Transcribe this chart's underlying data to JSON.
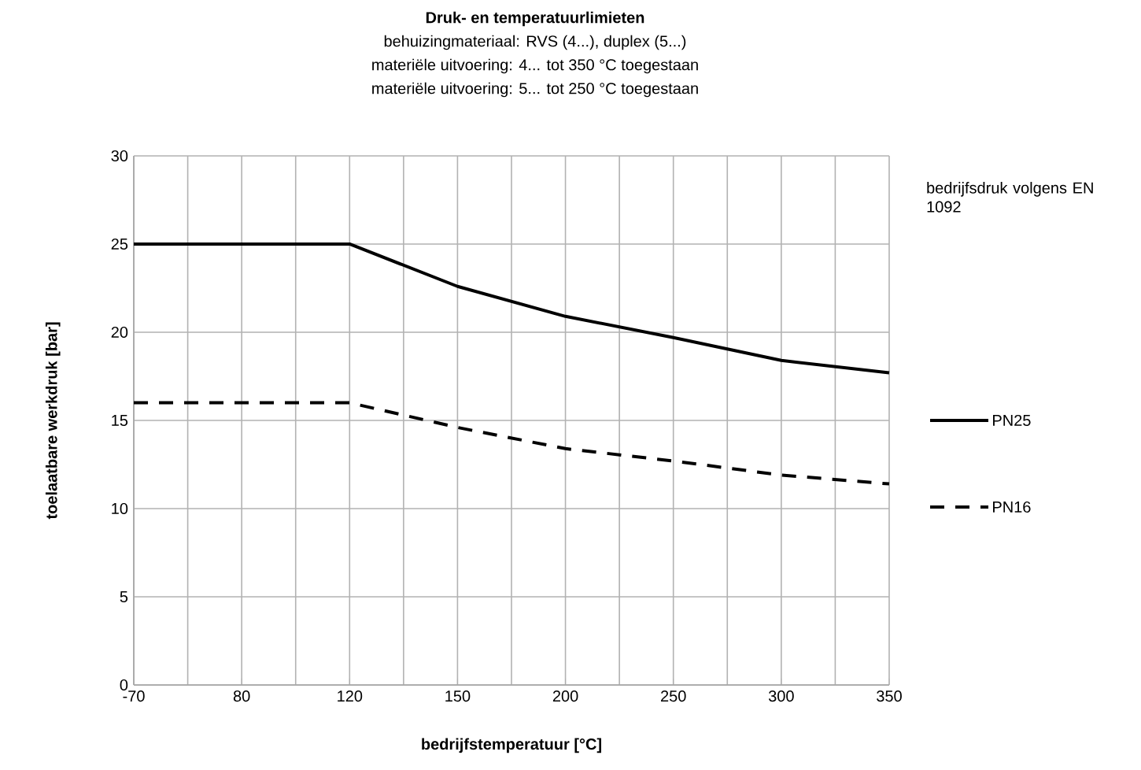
{
  "chart_data": {
    "type": "line",
    "title": "Druk- en temperatuurlimieten",
    "annotations": [
      "behuizingmateriaal: RVS (4...), duplex (5...)",
      "materiële uitvoering: 4... tot 350 °C toegestaan",
      "materiële uitvoering: 5... tot 250 °C toegestaan"
    ],
    "xlabel": "bedrijfstemperatuur [°C]",
    "ylabel": "toelaatbare werkdruk [bar]",
    "legend_title": "bedrijfsdruk volgens EN 1092",
    "categories": [
      "-70",
      "80",
      "120",
      "150",
      "200",
      "250",
      "300",
      "350"
    ],
    "series": [
      {
        "name": "PN25",
        "color": "#000000",
        "line_style": "solid",
        "values": [
          25,
          25,
          25,
          22.6,
          20.9,
          19.7,
          18.4,
          17.7
        ]
      },
      {
        "name": "PN16",
        "color": "#000000",
        "line_style": "dashed",
        "values": [
          16,
          16,
          16,
          14.6,
          13.4,
          12.7,
          11.9,
          11.4
        ]
      }
    ],
    "ylim": [
      0,
      30
    ],
    "yticks": [
      0,
      5,
      10,
      15,
      20,
      25,
      30
    ],
    "grid": true,
    "legend": "right",
    "marker": "none"
  }
}
